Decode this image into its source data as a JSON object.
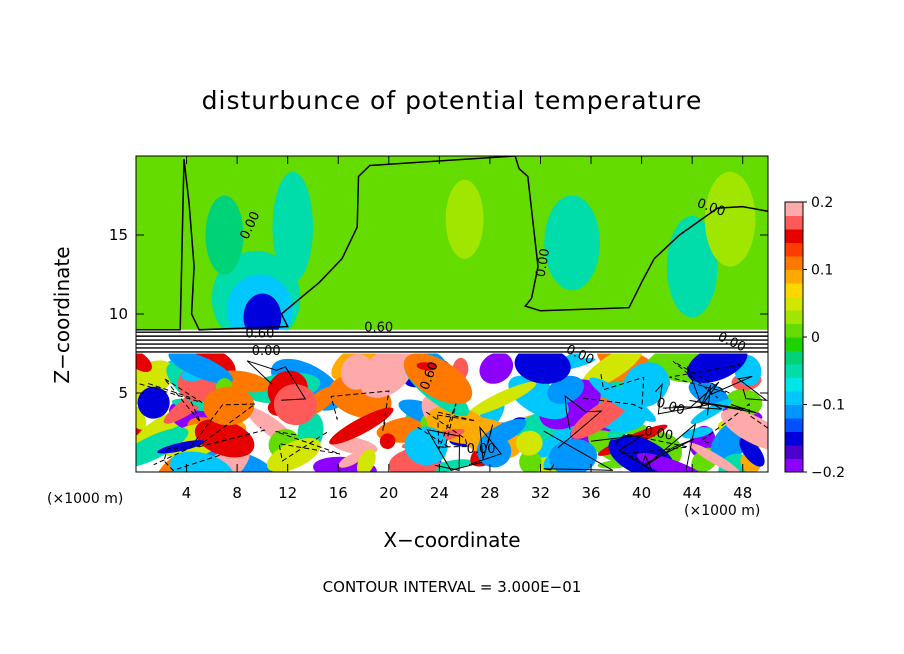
{
  "chart_data": {
    "type": "heatmap",
    "title": "disturbunce of potential temperature",
    "xlabel": "X−coordinate",
    "ylabel": "Z−coordinate",
    "x_unit_label_left": "(×1000 m)",
    "x_unit_label_right": "(×1000 m)",
    "footer": "CONTOUR INTERVAL = 3.000E−01",
    "xlim": [
      0,
      50
    ],
    "ylim": [
      0,
      20
    ],
    "x_ticks": [
      4,
      8,
      12,
      16,
      20,
      24,
      28,
      32,
      36,
      40,
      44,
      48
    ],
    "x_tick_labels": [
      "4",
      "8",
      "12",
      "16",
      "20",
      "24",
      "28",
      "32",
      "36",
      "40",
      "44",
      "48"
    ],
    "y_ticks": [
      5,
      10,
      15
    ],
    "y_tick_labels": [
      "5",
      "10",
      "15"
    ],
    "colorbar": {
      "range": [
        -0.2,
        0.2
      ],
      "tick_values": [
        0.2,
        0.1,
        0,
        -0.1,
        -0.2
      ],
      "tick_labels": [
        "0.2",
        "0.1",
        "0",
        "−0.1",
        "−0.2"
      ],
      "colors": [
        "#8b00ff",
        "#4b00cc",
        "#0000dc",
        "#0050ff",
        "#0096ff",
        "#00c8ff",
        "#00e6e6",
        "#00dcaa",
        "#00d278",
        "#1ed200",
        "#64dc00",
        "#a0e600",
        "#d2e600",
        "#ffd700",
        "#ffaa00",
        "#ff7800",
        "#ff3c00",
        "#e60000",
        "#ff5a5a",
        "#ffaaaa"
      ]
    },
    "contour_labels": [
      "0.00",
      "0.00",
      "0.00",
      "0.60",
      "0.60",
      "0.00",
      "0.00",
      "0.00",
      "0.00",
      "0.00",
      "0.00",
      "0.60"
    ],
    "grid": false,
    "legend": "colorbar-right"
  }
}
